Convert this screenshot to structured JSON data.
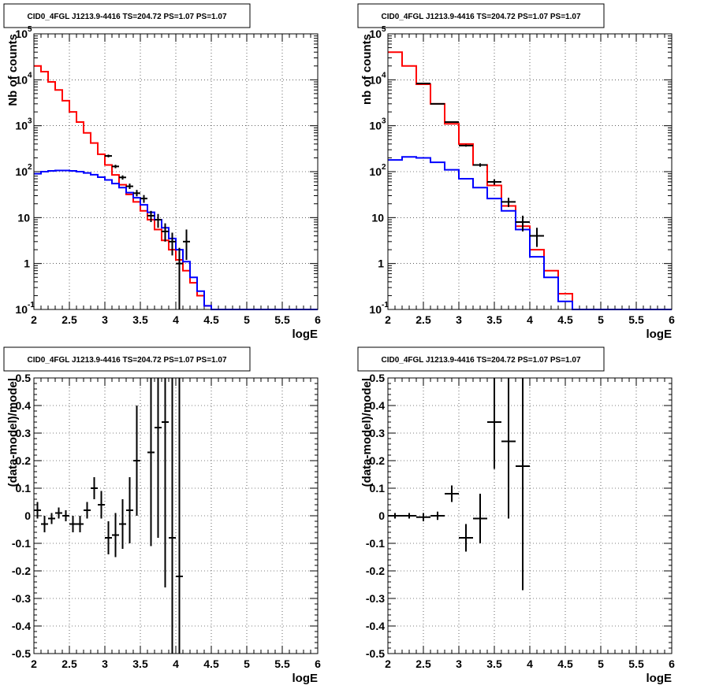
{
  "chart_data": [
    {
      "type": "line",
      "panel": "top-left",
      "title": "CID0_4FGL J1213.9-4416 TS=204.72 PS=1.07 PS=1.07",
      "xlabel": "logE",
      "ylabel": "Nb of counts",
      "xlim": [
        2,
        6
      ],
      "ylim": [
        0.1,
        100000
      ],
      "yscale": "log",
      "x_ticks": [
        "2",
        "2.5",
        "3",
        "3.5",
        "4",
        "4.5",
        "5",
        "5.5",
        "6"
      ],
      "grid": true,
      "bin_edges": [
        2.0,
        2.1,
        2.2,
        2.3,
        2.4,
        2.5,
        2.6,
        2.7,
        2.8,
        2.9,
        3.0,
        3.1,
        3.2,
        3.3,
        3.4,
        3.5,
        3.6,
        3.7,
        3.8,
        3.9,
        4.0,
        4.1,
        4.2,
        4.3,
        4.4,
        4.5,
        4.6,
        4.7,
        4.8,
        4.9,
        5.0,
        5.1,
        5.2,
        5.3,
        5.4,
        5.5,
        5.6,
        5.7,
        5.8,
        5.9,
        6.0
      ],
      "series": [
        {
          "color": "#ff0000",
          "style": "step",
          "values": [
            20000,
            15000,
            9000,
            6000,
            3500,
            2000,
            1200,
            700,
            420,
            240,
            140,
            85,
            52,
            32,
            22,
            14,
            9,
            5.5,
            3.2,
            2.0,
            1.2,
            0.7,
            0.38,
            0.2,
            0.12,
            0.1,
            0.1,
            0.1,
            0.1,
            0.1,
            0.1,
            0.1,
            0.1,
            0.1,
            0.1,
            0.1,
            0.1,
            0.1,
            0.1,
            0.1
          ]
        },
        {
          "color": "#0000ff",
          "style": "step",
          "values": [
            90,
            100,
            104,
            106,
            106,
            104,
            100,
            94,
            86,
            76,
            66,
            55,
            45,
            35,
            27,
            19,
            13,
            9,
            6,
            3.5,
            2.0,
            1.1,
            0.5,
            0.25,
            0.12,
            0.1,
            0.1,
            0.1,
            0.1,
            0.1,
            0.1,
            0.1,
            0.1,
            0.1,
            0.1,
            0.1,
            0.1,
            0.1,
            0.1,
            0.1
          ]
        },
        {
          "color": "#000000",
          "style": "points",
          "x": [
            3.05,
            3.15,
            3.25,
            3.35,
            3.45,
            3.55,
            3.65,
            3.75,
            3.85,
            3.95,
            4.05,
            4.15
          ],
          "y": [
            220,
            130,
            75,
            48,
            34,
            26,
            11,
            9,
            5,
            3,
            1,
            3
          ],
          "yerr_lo": [
            205,
            119,
            67,
            42,
            29,
            21,
            8,
            6,
            3,
            1.5,
            0.1,
            1.2
          ],
          "yerr_hi": [
            235,
            141,
            83,
            55,
            40,
            31,
            14,
            12,
            7.5,
            4.7,
            2.2,
            5.5
          ]
        }
      ]
    },
    {
      "type": "line",
      "panel": "top-right",
      "title": "CID0_4FGL J1213.9-4416 TS=204.72 PS=1.07 PS=1.07",
      "xlabel": "logE",
      "ylabel": "nb of counts",
      "xlim": [
        2,
        6
      ],
      "ylim": [
        0.1,
        100000
      ],
      "yscale": "log",
      "x_ticks": [
        "2",
        "2.5",
        "3",
        "3.5",
        "4",
        "4.5",
        "5",
        "5.5",
        "6"
      ],
      "grid": true,
      "bin_edges": [
        2.0,
        2.2,
        2.4,
        2.6,
        2.8,
        3.0,
        3.2,
        3.4,
        3.6,
        3.8,
        4.0,
        4.2,
        4.4,
        4.6,
        4.8,
        5.0,
        5.2,
        5.4,
        5.6,
        5.8,
        6.0
      ],
      "series": [
        {
          "color": "#ff0000",
          "style": "step",
          "values": [
            40000,
            20000,
            8000,
            3000,
            1100,
            400,
            140,
            50,
            18,
            6.5,
            2.0,
            0.7,
            0.22,
            0.1,
            0.1,
            0.1,
            0.1,
            0.1,
            0.1,
            0.1
          ]
        },
        {
          "color": "#0000ff",
          "style": "step",
          "values": [
            180,
            210,
            200,
            160,
            110,
            70,
            45,
            26,
            14,
            5.5,
            1.4,
            0.5,
            0.15,
            0.1,
            0.1,
            0.1,
            0.1,
            0.1,
            0.1,
            0.1
          ]
        },
        {
          "color": "#000000",
          "style": "points",
          "x": [
            2.5,
            2.7,
            2.9,
            3.1,
            3.3,
            3.5,
            3.7,
            3.9,
            4.1
          ],
          "y": [
            8300,
            3000,
            1200,
            370,
            140,
            60,
            22,
            8,
            4
          ],
          "yerr_lo": [
            8200,
            2950,
            1160,
            350,
            128,
            52,
            17,
            5,
            2.3
          ],
          "yerr_hi": [
            8400,
            3050,
            1240,
            390,
            152,
            68,
            27,
            11,
            6
          ]
        }
      ]
    },
    {
      "type": "scatter",
      "panel": "bottom-left",
      "title": "CID0_4FGL J1213.9-4416 TS=204.72 PS=1.07 PS=1.07",
      "xlabel": "logE",
      "ylabel": "(data-model)/model",
      "xlim": [
        2,
        6
      ],
      "ylim": [
        -0.5,
        0.5
      ],
      "x_ticks": [
        "2",
        "2.5",
        "3",
        "3.5",
        "4",
        "4.5",
        "5",
        "5.5",
        "6"
      ],
      "y_ticks": [
        "-0.5",
        "-0.4",
        "-0.3",
        "-0.2",
        "-0.1",
        "0",
        "0.1",
        "0.2",
        "0.3",
        "0.4",
        "0.5"
      ],
      "grid": true,
      "series": [
        {
          "color": "#000000",
          "x": [
            2.05,
            2.15,
            2.25,
            2.35,
            2.45,
            2.55,
            2.65,
            2.75,
            2.85,
            2.95,
            3.05,
            3.15,
            3.25,
            3.35,
            3.45,
            3.65,
            3.75,
            3.85,
            3.95,
            4.05
          ],
          "y": [
            0.02,
            -0.03,
            -0.01,
            0.01,
            0.0,
            -0.03,
            -0.03,
            0.02,
            0.1,
            0.04,
            -0.08,
            -0.07,
            -0.03,
            0.02,
            0.2,
            0.23,
            0.32,
            0.34,
            -0.08,
            -0.22
          ],
          "yerr": [
            0.03,
            0.03,
            0.02,
            0.02,
            0.02,
            0.03,
            0.03,
            0.03,
            0.04,
            0.05,
            0.06,
            0.08,
            0.09,
            0.12,
            0.2,
            0.34,
            0.4,
            0.6,
            0.6,
            0.8
          ]
        }
      ]
    },
    {
      "type": "scatter",
      "panel": "bottom-right",
      "title": "CID0_4FGL J1213.9-4416 TS=204.72 PS=1.07 PS=1.07",
      "xlabel": "logE",
      "ylabel": "(data-model)/model",
      "xlim": [
        2,
        6
      ],
      "ylim": [
        -0.5,
        0.5
      ],
      "x_ticks": [
        "2",
        "2.5",
        "3",
        "3.5",
        "4",
        "4.5",
        "5",
        "5.5",
        "6"
      ],
      "y_ticks": [
        "-0.5",
        "-0.4",
        "-0.3",
        "-0.2",
        "-0.1",
        "0",
        "0.1",
        "0.2",
        "0.3",
        "0.4",
        "0.5"
      ],
      "grid": true,
      "series": [
        {
          "color": "#000000",
          "x": [
            2.1,
            2.3,
            2.5,
            2.7,
            2.9,
            3.1,
            3.3,
            3.5,
            3.7,
            3.9
          ],
          "y": [
            0.0,
            0.0,
            -0.005,
            0.0,
            0.08,
            -0.08,
            -0.01,
            0.34,
            0.27,
            0.18
          ],
          "yerr": [
            0.01,
            0.01,
            0.015,
            0.015,
            0.03,
            0.05,
            0.09,
            0.17,
            0.28,
            0.45
          ]
        }
      ]
    }
  ]
}
